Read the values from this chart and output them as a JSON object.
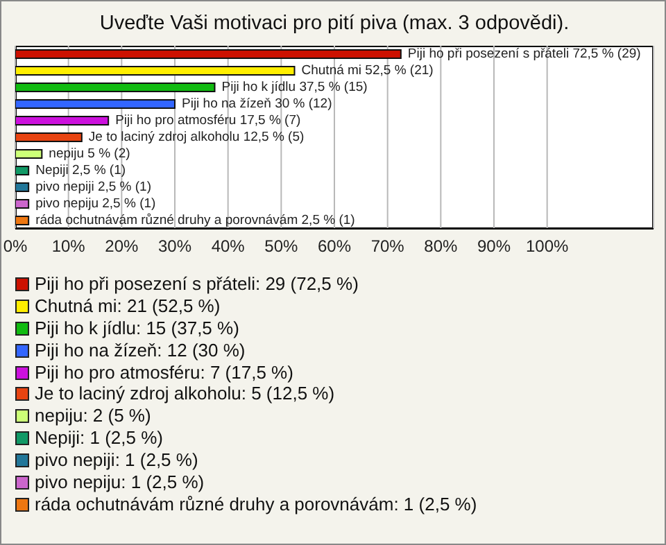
{
  "chart_data": {
    "type": "bar",
    "orientation": "horizontal",
    "stacked": true,
    "title": "Uveďte Vaši motivaci pro pití piva (max. 3 odpovědi).",
    "categories": [
      null,
      null,
      null,
      null,
      null,
      null,
      null,
      null,
      null,
      null,
      null
    ],
    "series": [
      {
        "name": "Piji ho při posezení s přáteli: 29 (72,5 %)",
        "color": "#cc1100",
        "values": [
          72.5,
          null,
          null,
          null,
          null,
          null,
          null,
          null,
          null,
          null,
          null
        ],
        "value_labels": [
          "Piji ho při posezení s přáteli 72,5 % (29)",
          null,
          null,
          null,
          null,
          null,
          null,
          null,
          null,
          null,
          null
        ]
      },
      {
        "name": "Chutná mi: 21 (52,5 %)",
        "color": "#ffee00",
        "values": [
          null,
          52.5,
          null,
          null,
          null,
          null,
          null,
          null,
          null,
          null,
          null
        ],
        "value_labels": [
          null,
          "Chutná mi 52,5 % (21)",
          null,
          null,
          null,
          null,
          null,
          null,
          null,
          null,
          null
        ]
      },
      {
        "name": "Piji ho k jídlu: 15 (37,5 %)",
        "color": "#11bb11",
        "values": [
          null,
          null,
          37.5,
          null,
          null,
          null,
          null,
          null,
          null,
          null,
          null
        ],
        "value_labels": [
          null,
          null,
          "Piji ho k jídlu 37,5 % (15)",
          null,
          null,
          null,
          null,
          null,
          null,
          null,
          null
        ]
      },
      {
        "name": "Piji ho na žízeň: 12 (30 %)",
        "color": "#3366ff",
        "values": [
          null,
          null,
          null,
          30,
          null,
          null,
          null,
          null,
          null,
          null,
          null
        ],
        "value_labels": [
          null,
          null,
          null,
          "Piji ho na žízeň 30 % (12)",
          null,
          null,
          null,
          null,
          null,
          null,
          null
        ]
      },
      {
        "name": "Piji ho pro atmosféru: 7 (17,5 %)",
        "color": "#cc11dd",
        "values": [
          null,
          null,
          null,
          null,
          17.5,
          null,
          null,
          null,
          null,
          null,
          null
        ],
        "value_labels": [
          null,
          null,
          null,
          null,
          "Piji ho pro atmosféru 17,5 % (7)",
          null,
          null,
          null,
          null,
          null,
          null
        ]
      },
      {
        "name": "Je to laciný zdroj alkoholu: 5 (12,5 %)",
        "color": "#e84411",
        "values": [
          null,
          null,
          null,
          null,
          null,
          12.5,
          null,
          null,
          null,
          null,
          null
        ],
        "value_labels": [
          null,
          null,
          null,
          null,
          null,
          "Je to laciný zdroj alkoholu 12,5 % (5)",
          null,
          null,
          null,
          null,
          null
        ]
      },
      {
        "name": "nepiju: 2 (5 %)",
        "color": "#ccff77",
        "values": [
          null,
          null,
          null,
          null,
          null,
          null,
          5,
          null,
          null,
          null,
          null
        ],
        "value_labels": [
          null,
          null,
          null,
          null,
          null,
          null,
          "nepiju 5 % (2)",
          null,
          null,
          null,
          null
        ]
      },
      {
        "name": "Nepiji: 1 (2,5 %)",
        "color": "#119966",
        "values": [
          null,
          null,
          null,
          null,
          null,
          null,
          null,
          2.5,
          null,
          null,
          null
        ],
        "value_labels": [
          null,
          null,
          null,
          null,
          null,
          null,
          null,
          "Nepiji 2,5 % (1)",
          null,
          null,
          null
        ]
      },
      {
        "name": "pivo nepiji: 1 (2,5 %)",
        "color": "#227799",
        "values": [
          null,
          null,
          null,
          null,
          null,
          null,
          null,
          null,
          2.5,
          null,
          null
        ],
        "value_labels": [
          null,
          null,
          null,
          null,
          null,
          null,
          null,
          null,
          "pivo nepiji 2,5 % (1)",
          null,
          null
        ]
      },
      {
        "name": "pivo nepiju: 1 (2,5 %)",
        "color": "#cc66cc",
        "values": [
          null,
          null,
          null,
          null,
          null,
          null,
          null,
          null,
          null,
          2.5,
          null
        ],
        "value_labels": [
          null,
          null,
          null,
          null,
          null,
          null,
          null,
          null,
          null,
          "pivo nepiju 2,5 % (1)",
          null
        ]
      },
      {
        "name": "ráda ochutnávám různé druhy a porovnávám: 1 (2,5 %)",
        "color": "#ee7711",
        "values": [
          null,
          null,
          null,
          null,
          null,
          null,
          null,
          null,
          null,
          null,
          2.5
        ],
        "value_labels": [
          null,
          null,
          null,
          null,
          null,
          null,
          null,
          null,
          null,
          null,
          "ráda ochutnávám různé druhy a porovnávám 2,5 % (1)"
        ]
      }
    ],
    "xlim": [
      0,
      120
    ],
    "xticks": [
      {
        "value": 0,
        "label": "0%"
      },
      {
        "value": 10,
        "label": "10%"
      },
      {
        "value": 20,
        "label": "20%"
      },
      {
        "value": 30,
        "label": "30%"
      },
      {
        "value": 40,
        "label": "40%"
      },
      {
        "value": 50,
        "label": "50%"
      },
      {
        "value": 60,
        "label": "60%"
      },
      {
        "value": 70,
        "label": "70%"
      },
      {
        "value": 80,
        "label": "80%"
      },
      {
        "value": 90,
        "label": "90%"
      },
      {
        "value": 100,
        "label": "100%"
      }
    ],
    "grid": "x",
    "legend": "bottom"
  }
}
